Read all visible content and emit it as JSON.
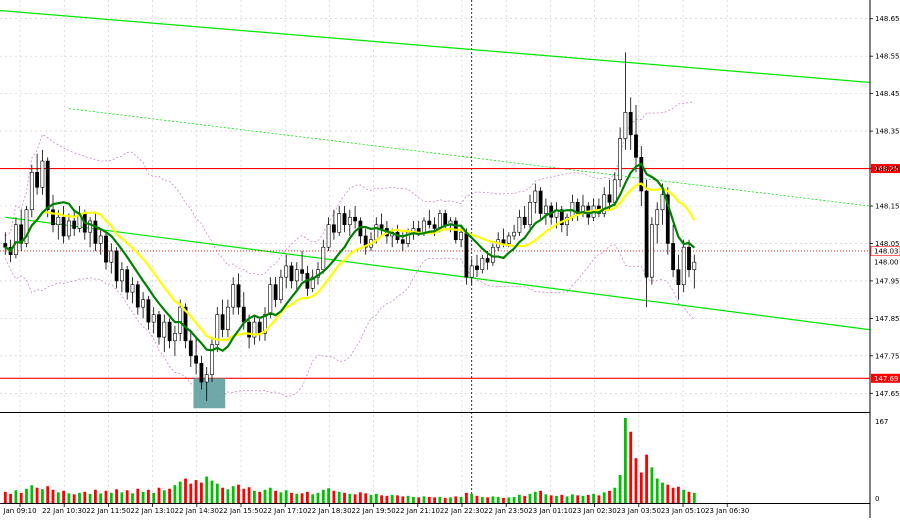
{
  "colors": {
    "background": "#ffffff",
    "grid": "#c8c8c8",
    "candle": "#000000",
    "support_resistance": "#ff0000",
    "trend_channel": "#00e600",
    "sma_fast": "#008000",
    "sma_slow": "#ffff00",
    "bollinger": "#cc88cc",
    "volume_up": "#00c000",
    "volume_down": "#ff0000",
    "highlight_box": "#5f9ea0",
    "current_price_line": "#ff0000"
  },
  "chart_data": {
    "type": "candlestick",
    "price_axis": {
      "ylim": [
        147.6,
        148.7
      ],
      "ticks": [
        "148.65",
        "148.55",
        "148.45",
        "148.35",
        "148.25",
        "148.15",
        "148.05",
        "147.95",
        "147.85",
        "147.75",
        "147.65"
      ],
      "tick_values": [
        148.65,
        148.55,
        148.45,
        148.35,
        148.25,
        148.15,
        148.05,
        147.95,
        147.85,
        147.75,
        147.65
      ]
    },
    "time_axis": {
      "labels": [
        "Jan 09:10",
        "22 Jan 10:30",
        "22 Jan 11:50",
        "22 Jan 13:10",
        "22 Jan 14:30",
        "22 Jan 15:50",
        "22 Jan 17:10",
        "22 Jan 18:30",
        "22 Jan 19:50",
        "22 Jan 21:10",
        "22 Jan 22:30",
        "22 Jan 23:50",
        "23 Jan 01:10",
        "23 Jan 02:30",
        "23 Jan 03:50",
        "23 Jan 05:10",
        "23 Jan 06:30"
      ]
    },
    "levels": [
      {
        "label": "148.25",
        "value": 148.25,
        "color": "#ff0000"
      },
      {
        "label": "147.69",
        "value": 147.69,
        "color": "#ff0000"
      }
    ],
    "current_price": {
      "label": "148.03",
      "value": 148.03
    },
    "last_price": {
      "label": "148.00",
      "value": 148.0
    },
    "volume_axis": {
      "max_label": "167",
      "min_label": "0",
      "max": 167
    },
    "trend_lines": [
      {
        "style": "solid",
        "from": [
          -25,
          148.7
        ],
        "to": [
          163,
          148.48
        ]
      },
      {
        "style": "solid",
        "from": [
          0,
          148.12
        ],
        "to": [
          163,
          147.82
        ]
      },
      {
        "style": "dotted",
        "from": [
          12,
          148.41
        ],
        "to": [
          163,
          148.15
        ]
      }
    ],
    "highlight_box": {
      "x_from": 35.5,
      "x_to": 41.5,
      "y_from": 147.61,
      "y_to": 147.69
    },
    "vertical_marker_index": 88,
    "candles": [
      {
        "o": 148.05,
        "h": 148.08,
        "l": 148.02,
        "c": 148.04,
        "v": 22
      },
      {
        "o": 148.04,
        "h": 148.06,
        "l": 148.0,
        "c": 148.02,
        "v": 18
      },
      {
        "o": 148.02,
        "h": 148.12,
        "l": 148.01,
        "c": 148.1,
        "v": 25
      },
      {
        "o": 148.1,
        "h": 148.14,
        "l": 148.03,
        "c": 148.05,
        "v": 20
      },
      {
        "o": 148.05,
        "h": 148.15,
        "l": 148.04,
        "c": 148.14,
        "v": 28
      },
      {
        "o": 148.14,
        "h": 148.26,
        "l": 148.12,
        "c": 148.24,
        "v": 35
      },
      {
        "o": 148.24,
        "h": 148.29,
        "l": 148.18,
        "c": 148.2,
        "v": 30
      },
      {
        "o": 148.2,
        "h": 148.3,
        "l": 148.18,
        "c": 148.27,
        "v": 27
      },
      {
        "o": 148.27,
        "h": 148.28,
        "l": 148.12,
        "c": 148.14,
        "v": 33
      },
      {
        "o": 148.14,
        "h": 148.18,
        "l": 148.08,
        "c": 148.1,
        "v": 26
      },
      {
        "o": 148.1,
        "h": 148.14,
        "l": 148.06,
        "c": 148.12,
        "v": 21
      },
      {
        "o": 148.12,
        "h": 148.15,
        "l": 148.05,
        "c": 148.07,
        "v": 24
      },
      {
        "o": 148.07,
        "h": 148.13,
        "l": 148.06,
        "c": 148.11,
        "v": 19
      },
      {
        "o": 148.11,
        "h": 148.14,
        "l": 148.07,
        "c": 148.09,
        "v": 17
      },
      {
        "o": 148.09,
        "h": 148.15,
        "l": 148.08,
        "c": 148.13,
        "v": 20
      },
      {
        "o": 148.13,
        "h": 148.14,
        "l": 148.06,
        "c": 148.08,
        "v": 22
      },
      {
        "o": 148.08,
        "h": 148.12,
        "l": 148.04,
        "c": 148.11,
        "v": 18
      },
      {
        "o": 148.11,
        "h": 148.13,
        "l": 148.03,
        "c": 148.05,
        "v": 26
      },
      {
        "o": 148.05,
        "h": 148.09,
        "l": 148.02,
        "c": 148.07,
        "v": 19
      },
      {
        "o": 148.07,
        "h": 148.08,
        "l": 147.98,
        "c": 148.0,
        "v": 24
      },
      {
        "o": 148.0,
        "h": 148.05,
        "l": 147.97,
        "c": 148.03,
        "v": 20
      },
      {
        "o": 148.03,
        "h": 148.04,
        "l": 147.93,
        "c": 147.95,
        "v": 27
      },
      {
        "o": 147.95,
        "h": 148.0,
        "l": 147.92,
        "c": 147.98,
        "v": 21
      },
      {
        "o": 147.98,
        "h": 147.99,
        "l": 147.9,
        "c": 147.92,
        "v": 25
      },
      {
        "o": 147.92,
        "h": 147.96,
        "l": 147.89,
        "c": 147.94,
        "v": 19
      },
      {
        "o": 147.94,
        "h": 147.95,
        "l": 147.86,
        "c": 147.88,
        "v": 28
      },
      {
        "o": 147.88,
        "h": 147.92,
        "l": 147.85,
        "c": 147.9,
        "v": 22
      },
      {
        "o": 147.9,
        "h": 147.91,
        "l": 147.82,
        "c": 147.84,
        "v": 26
      },
      {
        "o": 147.84,
        "h": 147.88,
        "l": 147.81,
        "c": 147.86,
        "v": 20
      },
      {
        "o": 147.86,
        "h": 147.87,
        "l": 147.78,
        "c": 147.8,
        "v": 30
      },
      {
        "o": 147.8,
        "h": 147.86,
        "l": 147.76,
        "c": 147.84,
        "v": 25
      },
      {
        "o": 147.84,
        "h": 147.85,
        "l": 147.77,
        "c": 147.79,
        "v": 28
      },
      {
        "o": 147.79,
        "h": 147.83,
        "l": 147.75,
        "c": 147.81,
        "v": 35
      },
      {
        "o": 147.81,
        "h": 147.9,
        "l": 147.79,
        "c": 147.88,
        "v": 42
      },
      {
        "o": 147.88,
        "h": 147.89,
        "l": 147.77,
        "c": 147.79,
        "v": 48
      },
      {
        "o": 147.79,
        "h": 147.82,
        "l": 147.72,
        "c": 147.75,
        "v": 38
      },
      {
        "o": 147.75,
        "h": 147.8,
        "l": 147.7,
        "c": 147.73,
        "v": 45
      },
      {
        "o": 147.73,
        "h": 147.75,
        "l": 147.66,
        "c": 147.68,
        "v": 40
      },
      {
        "o": 147.68,
        "h": 147.72,
        "l": 147.63,
        "c": 147.7,
        "v": 52
      },
      {
        "o": 147.7,
        "h": 147.8,
        "l": 147.68,
        "c": 147.78,
        "v": 44
      },
      {
        "o": 147.78,
        "h": 147.88,
        "l": 147.76,
        "c": 147.86,
        "v": 38
      },
      {
        "o": 147.86,
        "h": 147.9,
        "l": 147.8,
        "c": 147.82,
        "v": 30
      },
      {
        "o": 147.82,
        "h": 147.9,
        "l": 147.8,
        "c": 147.88,
        "v": 27
      },
      {
        "o": 147.88,
        "h": 147.96,
        "l": 147.86,
        "c": 147.94,
        "v": 33
      },
      {
        "o": 147.94,
        "h": 147.97,
        "l": 147.86,
        "c": 147.88,
        "v": 36
      },
      {
        "o": 147.88,
        "h": 147.92,
        "l": 147.82,
        "c": 147.84,
        "v": 28
      },
      {
        "o": 147.84,
        "h": 147.86,
        "l": 147.77,
        "c": 147.8,
        "v": 31
      },
      {
        "o": 147.8,
        "h": 147.86,
        "l": 147.78,
        "c": 147.84,
        "v": 24
      },
      {
        "o": 147.84,
        "h": 147.85,
        "l": 147.79,
        "c": 147.81,
        "v": 22
      },
      {
        "o": 147.81,
        "h": 147.88,
        "l": 147.79,
        "c": 147.86,
        "v": 26
      },
      {
        "o": 147.86,
        "h": 147.96,
        "l": 147.85,
        "c": 147.94,
        "v": 30
      },
      {
        "o": 147.94,
        "h": 147.96,
        "l": 147.88,
        "c": 147.9,
        "v": 24
      },
      {
        "o": 147.9,
        "h": 147.98,
        "l": 147.89,
        "c": 147.96,
        "v": 21
      },
      {
        "o": 147.96,
        "h": 148.02,
        "l": 147.93,
        "c": 147.99,
        "v": 25
      },
      {
        "o": 147.99,
        "h": 148.0,
        "l": 147.93,
        "c": 147.95,
        "v": 20
      },
      {
        "o": 147.95,
        "h": 148.0,
        "l": 147.92,
        "c": 147.98,
        "v": 18
      },
      {
        "o": 147.98,
        "h": 148.03,
        "l": 147.95,
        "c": 147.97,
        "v": 19
      },
      {
        "o": 147.97,
        "h": 147.99,
        "l": 147.91,
        "c": 147.93,
        "v": 22
      },
      {
        "o": 147.93,
        "h": 147.98,
        "l": 147.92,
        "c": 147.96,
        "v": 17
      },
      {
        "o": 147.96,
        "h": 148.0,
        "l": 147.94,
        "c": 147.98,
        "v": 20
      },
      {
        "o": 147.98,
        "h": 148.06,
        "l": 147.97,
        "c": 148.04,
        "v": 26
      },
      {
        "o": 148.04,
        "h": 148.12,
        "l": 148.03,
        "c": 148.1,
        "v": 29
      },
      {
        "o": 148.1,
        "h": 148.14,
        "l": 148.06,
        "c": 148.08,
        "v": 24
      },
      {
        "o": 148.08,
        "h": 148.15,
        "l": 148.07,
        "c": 148.13,
        "v": 22
      },
      {
        "o": 148.13,
        "h": 148.15,
        "l": 148.08,
        "c": 148.1,
        "v": 20
      },
      {
        "o": 148.1,
        "h": 148.14,
        "l": 148.07,
        "c": 148.12,
        "v": 18
      },
      {
        "o": 148.12,
        "h": 148.15,
        "l": 148.09,
        "c": 148.11,
        "v": 17
      },
      {
        "o": 148.11,
        "h": 148.12,
        "l": 148.05,
        "c": 148.07,
        "v": 21
      },
      {
        "o": 148.07,
        "h": 148.09,
        "l": 148.02,
        "c": 148.04,
        "v": 19
      },
      {
        "o": 148.04,
        "h": 148.08,
        "l": 148.03,
        "c": 148.06,
        "v": 16
      },
      {
        "o": 148.06,
        "h": 148.12,
        "l": 148.05,
        "c": 148.1,
        "v": 18
      },
      {
        "o": 148.1,
        "h": 148.13,
        "l": 148.07,
        "c": 148.09,
        "v": 15
      },
      {
        "o": 148.09,
        "h": 148.11,
        "l": 148.05,
        "c": 148.07,
        "v": 14
      },
      {
        "o": 148.07,
        "h": 148.09,
        "l": 148.04,
        "c": 148.08,
        "v": 16
      },
      {
        "o": 148.08,
        "h": 148.1,
        "l": 148.05,
        "c": 148.06,
        "v": 15
      },
      {
        "o": 148.06,
        "h": 148.08,
        "l": 148.03,
        "c": 148.05,
        "v": 13
      },
      {
        "o": 148.05,
        "h": 148.09,
        "l": 148.04,
        "c": 148.08,
        "v": 14
      },
      {
        "o": 148.08,
        "h": 148.11,
        "l": 148.06,
        "c": 148.09,
        "v": 12
      },
      {
        "o": 148.09,
        "h": 148.11,
        "l": 148.07,
        "c": 148.08,
        "v": 11
      },
      {
        "o": 148.08,
        "h": 148.12,
        "l": 148.07,
        "c": 148.11,
        "v": 13
      },
      {
        "o": 148.11,
        "h": 148.14,
        "l": 148.09,
        "c": 148.1,
        "v": 12
      },
      {
        "o": 148.1,
        "h": 148.12,
        "l": 148.07,
        "c": 148.09,
        "v": 11
      },
      {
        "o": 148.09,
        "h": 148.14,
        "l": 148.08,
        "c": 148.13,
        "v": 12
      },
      {
        "o": 148.13,
        "h": 148.14,
        "l": 148.09,
        "c": 148.1,
        "v": 10
      },
      {
        "o": 148.1,
        "h": 148.12,
        "l": 148.08,
        "c": 148.11,
        "v": 11
      },
      {
        "o": 148.11,
        "h": 148.12,
        "l": 148.05,
        "c": 148.06,
        "v": 13
      },
      {
        "o": 148.06,
        "h": 148.1,
        "l": 148.04,
        "c": 148.08,
        "v": 12
      },
      {
        "o": 148.08,
        "h": 148.09,
        "l": 147.94,
        "c": 147.96,
        "v": 20
      },
      {
        "o": 147.96,
        "h": 148.01,
        "l": 147.94,
        "c": 147.99,
        "v": 18
      },
      {
        "o": 147.99,
        "h": 148.02,
        "l": 147.96,
        "c": 147.98,
        "v": 14
      },
      {
        "o": 147.98,
        "h": 148.02,
        "l": 147.97,
        "c": 148.01,
        "v": 12
      },
      {
        "o": 148.01,
        "h": 148.03,
        "l": 147.98,
        "c": 148.0,
        "v": 11
      },
      {
        "o": 148.0,
        "h": 148.05,
        "l": 147.99,
        "c": 148.04,
        "v": 13
      },
      {
        "o": 148.04,
        "h": 148.08,
        "l": 148.03,
        "c": 148.06,
        "v": 12
      },
      {
        "o": 148.06,
        "h": 148.09,
        "l": 148.04,
        "c": 148.05,
        "v": 10
      },
      {
        "o": 148.05,
        "h": 148.08,
        "l": 148.04,
        "c": 148.07,
        "v": 11
      },
      {
        "o": 148.07,
        "h": 148.1,
        "l": 148.06,
        "c": 148.08,
        "v": 12
      },
      {
        "o": 148.08,
        "h": 148.14,
        "l": 148.07,
        "c": 148.12,
        "v": 16
      },
      {
        "o": 148.12,
        "h": 148.15,
        "l": 148.09,
        "c": 148.1,
        "v": 14
      },
      {
        "o": 148.1,
        "h": 148.18,
        "l": 148.09,
        "c": 148.16,
        "v": 18
      },
      {
        "o": 148.16,
        "h": 148.21,
        "l": 148.13,
        "c": 148.19,
        "v": 22
      },
      {
        "o": 148.19,
        "h": 148.2,
        "l": 148.11,
        "c": 148.13,
        "v": 24
      },
      {
        "o": 148.13,
        "h": 148.17,
        "l": 148.1,
        "c": 148.15,
        "v": 17
      },
      {
        "o": 148.15,
        "h": 148.16,
        "l": 148.1,
        "c": 148.12,
        "v": 15
      },
      {
        "o": 148.12,
        "h": 148.16,
        "l": 148.09,
        "c": 148.14,
        "v": 14
      },
      {
        "o": 148.14,
        "h": 148.15,
        "l": 148.08,
        "c": 148.1,
        "v": 16
      },
      {
        "o": 148.1,
        "h": 148.13,
        "l": 148.07,
        "c": 148.12,
        "v": 13
      },
      {
        "o": 148.12,
        "h": 148.18,
        "l": 148.11,
        "c": 148.16,
        "v": 17
      },
      {
        "o": 148.16,
        "h": 148.17,
        "l": 148.11,
        "c": 148.13,
        "v": 15
      },
      {
        "o": 148.13,
        "h": 148.18,
        "l": 148.12,
        "c": 148.15,
        "v": 14
      },
      {
        "o": 148.15,
        "h": 148.16,
        "l": 148.1,
        "c": 148.12,
        "v": 16
      },
      {
        "o": 148.12,
        "h": 148.17,
        "l": 148.11,
        "c": 148.15,
        "v": 18
      },
      {
        "o": 148.15,
        "h": 148.17,
        "l": 148.12,
        "c": 148.13,
        "v": 15
      },
      {
        "o": 148.13,
        "h": 148.2,
        "l": 148.12,
        "c": 148.18,
        "v": 21
      },
      {
        "o": 148.18,
        "h": 148.22,
        "l": 148.14,
        "c": 148.16,
        "v": 24
      },
      {
        "o": 148.16,
        "h": 148.24,
        "l": 148.15,
        "c": 148.22,
        "v": 30
      },
      {
        "o": 148.22,
        "h": 148.36,
        "l": 148.2,
        "c": 148.33,
        "v": 55
      },
      {
        "o": 148.33,
        "h": 148.56,
        "l": 148.3,
        "c": 148.4,
        "v": 167
      },
      {
        "o": 148.4,
        "h": 148.44,
        "l": 148.3,
        "c": 148.34,
        "v": 140
      },
      {
        "o": 148.34,
        "h": 148.42,
        "l": 148.24,
        "c": 148.28,
        "v": 88
      },
      {
        "o": 148.28,
        "h": 148.31,
        "l": 148.15,
        "c": 148.19,
        "v": 60
      },
      {
        "o": 148.19,
        "h": 148.22,
        "l": 147.88,
        "c": 147.96,
        "v": 95
      },
      {
        "o": 147.96,
        "h": 148.12,
        "l": 147.94,
        "c": 148.1,
        "v": 70
      },
      {
        "o": 148.1,
        "h": 148.16,
        "l": 148.05,
        "c": 148.14,
        "v": 48
      },
      {
        "o": 148.14,
        "h": 148.21,
        "l": 148.1,
        "c": 148.18,
        "v": 40
      },
      {
        "o": 148.18,
        "h": 148.2,
        "l": 148.02,
        "c": 148.05,
        "v": 36
      },
      {
        "o": 148.05,
        "h": 148.1,
        "l": 147.96,
        "c": 147.98,
        "v": 30
      },
      {
        "o": 147.98,
        "h": 148.02,
        "l": 147.9,
        "c": 147.94,
        "v": 32
      },
      {
        "o": 147.94,
        "h": 148.06,
        "l": 147.92,
        "c": 148.04,
        "v": 26
      },
      {
        "o": 148.04,
        "h": 148.06,
        "l": 147.96,
        "c": 147.98,
        "v": 22
      },
      {
        "o": 147.98,
        "h": 148.02,
        "l": 147.93,
        "c": 148.0,
        "v": 20
      }
    ]
  }
}
